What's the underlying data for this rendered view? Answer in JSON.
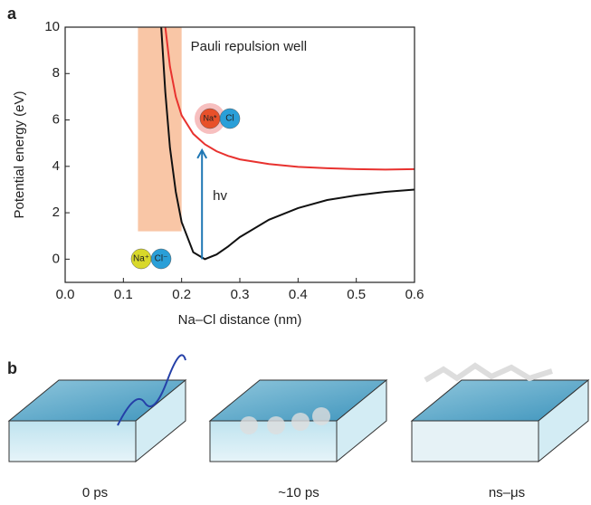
{
  "chart_data": {
    "type": "line",
    "panel_label": "a",
    "x_label": "Na–Cl distance (nm)",
    "y_label": "Potential energy (eV)",
    "xlim": [
      0,
      0.6
    ],
    "ylim": [
      -1,
      10
    ],
    "xticks": [
      {
        "value": 0,
        "label": "0.0"
      },
      0.1,
      0.2,
      0.3,
      0.4,
      0.5,
      0.6
    ],
    "yticks": [
      0,
      2,
      4,
      6,
      8,
      10
    ],
    "x": [
      0.165,
      0.172,
      0.18,
      0.19,
      0.2,
      0.22,
      0.24,
      0.26,
      0.28,
      0.3,
      0.35,
      0.4,
      0.45,
      0.5,
      0.55,
      0.6
    ],
    "series": [
      {
        "name": "Na⁺Cl⁻",
        "color": "#111111",
        "values": [
          10,
          7.2,
          4.8,
          2.9,
          1.6,
          0.3,
          0,
          0.2,
          0.55,
          0.95,
          1.7,
          2.2,
          2.55,
          2.75,
          2.9,
          3.0
        ]
      },
      {
        "name": "Na*Cl",
        "color": "#e8322f",
        "values": [
          null,
          10,
          8.3,
          7.0,
          6.2,
          5.4,
          4.95,
          4.65,
          4.45,
          4.3,
          4.1,
          3.98,
          3.92,
          3.88,
          3.86,
          3.88
        ]
      }
    ],
    "shaded_region": {
      "label": "Pauli repulsion well",
      "color": "#f9c6a6",
      "x": [
        0.125,
        0.2
      ],
      "y": [
        1.2,
        10
      ]
    },
    "arrow": {
      "label": "hv",
      "color": "#1f77b4",
      "x": 0.235,
      "y": [
        0,
        4.7
      ]
    },
    "ground_ions": [
      "Na⁺",
      "Cl⁻"
    ],
    "excited_ions": [
      "Na*",
      "Cl"
    ]
  },
  "panel_b": {
    "label": "b",
    "stages": [
      "0 ps",
      "~10 ps",
      "ns–μs"
    ]
  }
}
